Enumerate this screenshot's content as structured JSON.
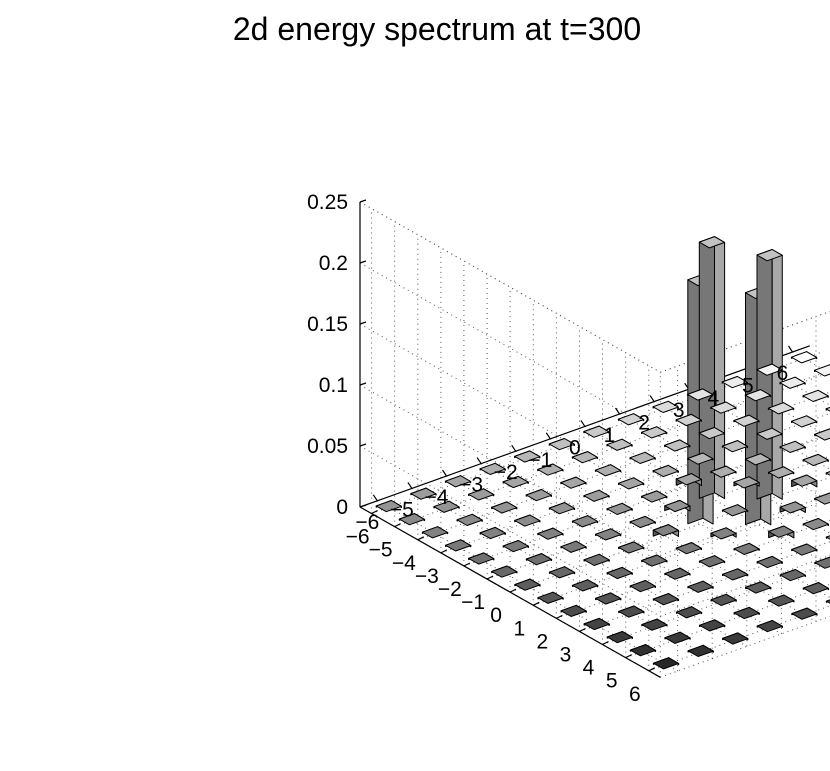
{
  "chart_data": {
    "type": "bar3d",
    "title": "2d energy spectrum at t=300",
    "xlabel": "",
    "ylabel": "",
    "zlabel": "",
    "x_ticks": [
      "−6",
      "−5",
      "−4",
      "−3",
      "−2",
      "−1",
      "0",
      "1",
      "2",
      "3",
      "4",
      "5",
      "6"
    ],
    "y_ticks": [
      "−6",
      "−5",
      "−4",
      "−3",
      "−2",
      "−1",
      "0",
      "1",
      "2",
      "3",
      "4",
      "5",
      "6"
    ],
    "z_ticks": [
      "0",
      "0.05",
      "0.1",
      "0.15",
      "0.2",
      "0.25"
    ],
    "z_tick_values": [
      0,
      0.05,
      0.1,
      0.15,
      0.2,
      0.25
    ],
    "xlim": [
      -6,
      6
    ],
    "ylim": [
      -6,
      6
    ],
    "zlim": [
      0,
      0.25
    ],
    "grid": true,
    "tall_bars": [
      {
        "x": 0,
        "y": -1,
        "z": 0.21
      },
      {
        "x": 1,
        "y": 0,
        "z": 0.2
      },
      {
        "x": -1,
        "y": 0,
        "z": 0.2
      },
      {
        "x": 0,
        "y": 1,
        "z": 0.19
      }
    ],
    "small_bars": [
      {
        "x": 0,
        "y": -2,
        "z": 0.005
      },
      {
        "x": -2,
        "y": 0,
        "z": 0.005
      },
      {
        "x": 2,
        "y": 0,
        "z": 0.005
      },
      {
        "x": 0,
        "y": 2,
        "z": 0.005
      },
      {
        "x": -1,
        "y": -1,
        "z": 0.004
      },
      {
        "x": 1,
        "y": 1,
        "z": 0.004
      },
      {
        "x": 1,
        "y": -1,
        "z": 0.003
      },
      {
        "x": -1,
        "y": 1,
        "z": 0.003
      }
    ],
    "baseline_value": 0.001,
    "colors": {
      "face_dark": "#2a2a2a",
      "face_light": "#ffffff",
      "tall_front": "#777777",
      "tall_side": "#a8a8a8",
      "tall_top": "#c2c2c2",
      "edge": "#000000"
    }
  }
}
